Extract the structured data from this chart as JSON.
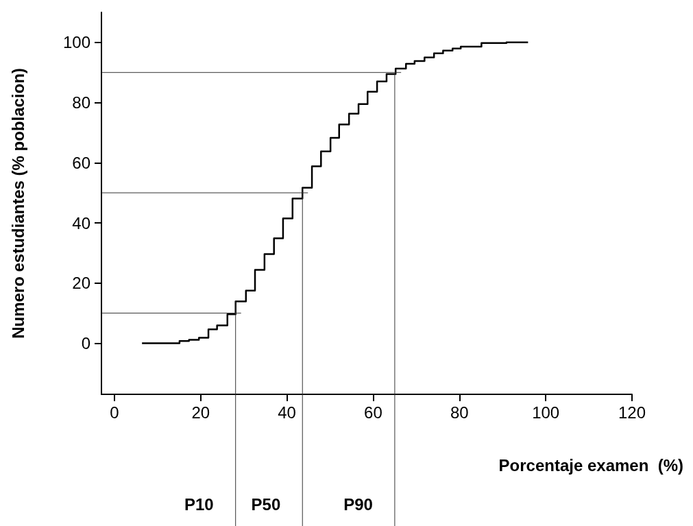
{
  "chart_data": {
    "type": "step",
    "xlabel": "Porcentaje examen  (%)",
    "ylabel": "Numero estudiantes (% poblacion)",
    "x": [
      6.4,
      15.1,
      17.3,
      19.6,
      21.8,
      23.8,
      26.2,
      28.1,
      30.5,
      32.6,
      34.8,
      37.0,
      39.1,
      41.3,
      43.6,
      45.8,
      47.9,
      50.1,
      52.1,
      54.4,
      56.6,
      58.7,
      60.9,
      63.1,
      65.2,
      67.6,
      69.6,
      71.9,
      74.1,
      76.2,
      78.4,
      80.3,
      85.1,
      90.9,
      95.9
    ],
    "values": [
      0,
      0.7,
      1.1,
      1.8,
      4.6,
      5.9,
      9.6,
      13.9,
      17.5,
      24.4,
      29.6,
      34.9,
      41.5,
      48.1,
      51.7,
      58.8,
      63.8,
      68.3,
      72.7,
      76.3,
      79.5,
      83.6,
      87.0,
      89.5,
      91.3,
      92.9,
      93.8,
      95.0,
      96.4,
      97.3,
      98.0,
      98.6,
      99.8,
      100,
      100
    ],
    "color": "#000000",
    "xlim": [
      -3,
      120
    ],
    "xticks": [
      0,
      20,
      40,
      60,
      80,
      100,
      120
    ],
    "ylim": [
      -17,
      110
    ],
    "yticks": [
      0,
      20,
      40,
      60,
      80,
      100
    ],
    "grid": false,
    "marker": "none",
    "line_style": "solid",
    "ref_lines": [
      {
        "axis": "y",
        "value": 10,
        "label": null
      },
      {
        "axis": "y",
        "value": 50,
        "label": null
      },
      {
        "axis": "y",
        "value": 90,
        "label": null
      },
      {
        "axis": "x",
        "value": 28.1,
        "label": "P10"
      },
      {
        "axis": "x",
        "value": 43.6,
        "label": "P50"
      },
      {
        "axis": "x",
        "value": 65.0,
        "label": "P90"
      }
    ]
  }
}
